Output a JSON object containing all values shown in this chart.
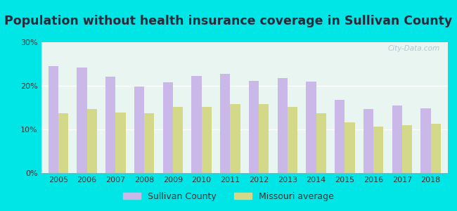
{
  "title": "Population without health insurance coverage in Sullivan County",
  "years": [
    2005,
    2006,
    2007,
    2008,
    2009,
    2010,
    2011,
    2012,
    2013,
    2014,
    2015,
    2016,
    2017,
    2018
  ],
  "sullivan_county": [
    24.5,
    24.2,
    22.1,
    19.9,
    20.8,
    22.3,
    22.7,
    21.1,
    21.7,
    21.0,
    16.8,
    14.6,
    15.5,
    14.8
  ],
  "missouri_avg": [
    13.7,
    14.6,
    13.9,
    13.7,
    15.2,
    15.1,
    15.8,
    15.8,
    15.1,
    13.7,
    11.6,
    10.7,
    10.9,
    11.3
  ],
  "sullivan_color": "#c9b8e8",
  "missouri_color": "#d4d98a",
  "background_outer": "#00e5e5",
  "background_inner_top": "#e8f5f0",
  "background_inner_bottom": "#d0f0e8",
  "ylim": [
    0,
    30
  ],
  "yticks": [
    0,
    10,
    20,
    30
  ],
  "legend_sullivan": "Sullivan County",
  "legend_missouri": "Missouri average",
  "bar_width": 0.35,
  "title_fontsize": 12.5,
  "title_color": "#2a2a3a",
  "watermark": "City-Data.com",
  "tick_fontsize": 8,
  "legend_fontsize": 9
}
